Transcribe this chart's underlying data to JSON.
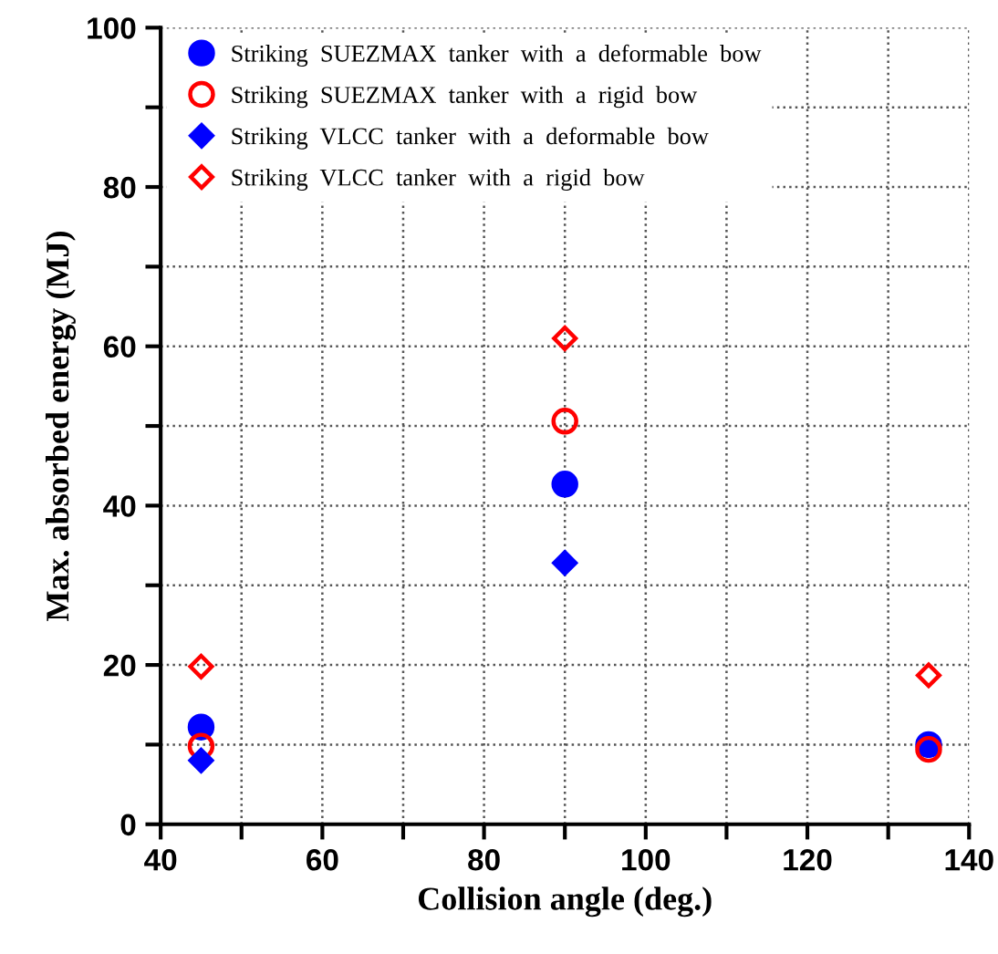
{
  "chart_data": {
    "type": "scatter",
    "xlabel": "Collision angle (deg.)",
    "ylabel": "Max. absorbed energy (MJ)",
    "x": [
      45,
      90,
      135
    ],
    "series": [
      {
        "name": "Striking  SUEZMAX  tanker  with  a  deformable  bow",
        "color": "#0000ff",
        "marker": "circle",
        "values": [
          12.2,
          42.7,
          10.0
        ]
      },
      {
        "name": "Striking  SUEZMAX  tanker  with  a  rigid  bow",
        "color": "#ff0000",
        "marker": "circle",
        "values": [
          9.8,
          50.6,
          9.4
        ]
      },
      {
        "name": "Striking  VLCC  tanker  with  a  deformable  bow",
        "color": "#0000ff",
        "marker": "diamond",
        "values": [
          8.0,
          32.8,
          null
        ]
      },
      {
        "name": "Striking  VLCC  tanker  with  a  rigid  bow",
        "color": "#ff0000",
        "marker": "diamond",
        "values": [
          19.8,
          61.0,
          18.7
        ]
      }
    ],
    "xlim": [
      40,
      140
    ],
    "ylim": [
      0,
      100
    ],
    "xticks": [
      40,
      {
        "value": 50,
        "label": null
      },
      60,
      {
        "value": 70,
        "label": null
      },
      80,
      {
        "value": 90,
        "label": null
      },
      100,
      {
        "value": 110,
        "label": null
      },
      120,
      {
        "value": 130,
        "label": null
      },
      140
    ],
    "yticks": [
      0,
      {
        "value": 10,
        "label": null
      },
      20,
      {
        "value": 30,
        "label": null
      },
      40,
      {
        "value": 50,
        "label": null
      },
      60,
      {
        "value": 70,
        "label": null
      },
      80,
      {
        "value": 90,
        "label": null
      },
      100
    ],
    "grid": true,
    "legend": "top left"
  }
}
